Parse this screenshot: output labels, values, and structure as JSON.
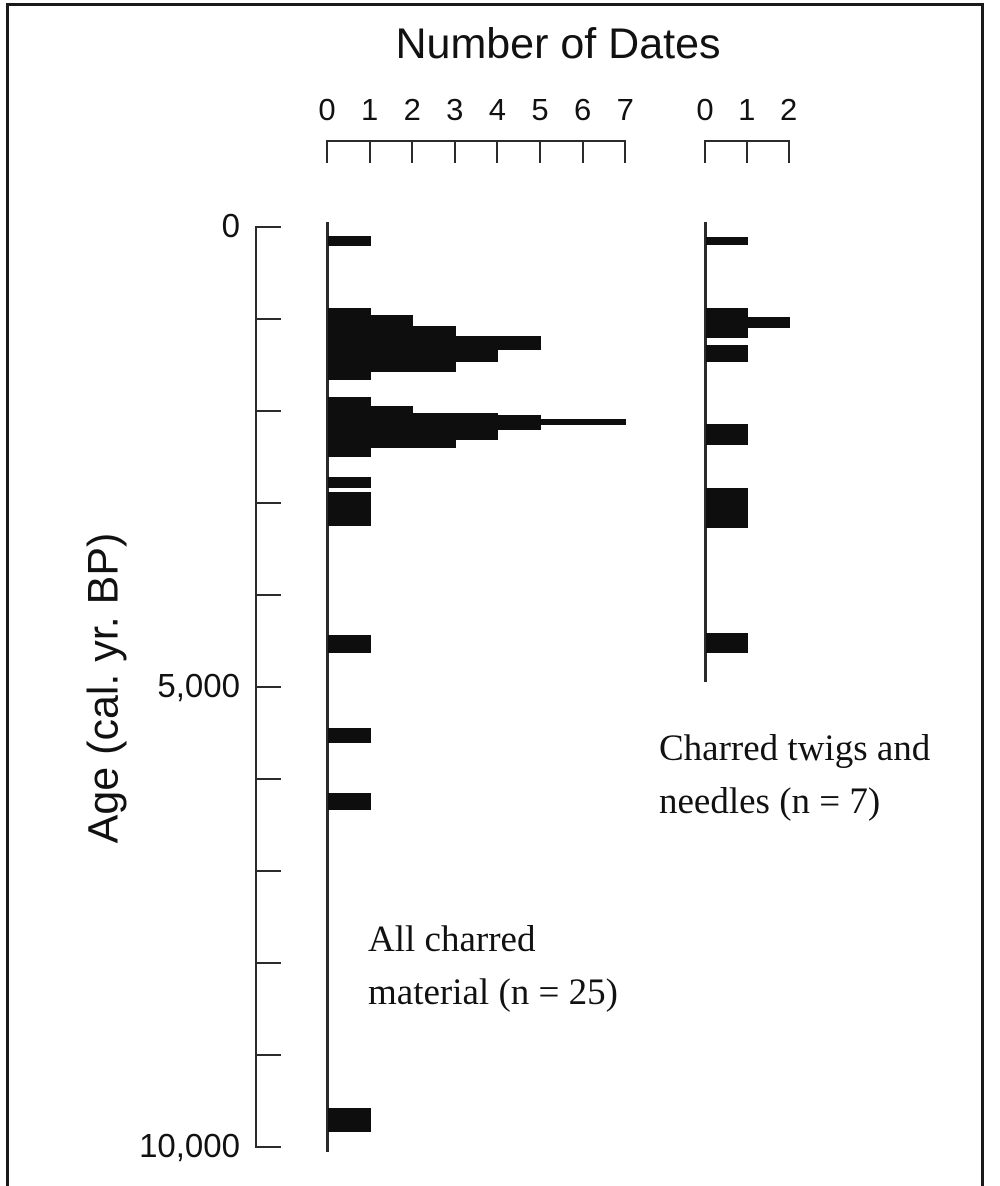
{
  "colors": {
    "ink": "#111111",
    "axis": "#2b2b2b",
    "bar": "#0e0e0e",
    "background": "#ffffff"
  },
  "chart_data": {
    "type": "bar",
    "orientation": "horizontal-histogram",
    "title": "Number of Dates",
    "grid": false,
    "legend": false,
    "y_axis": {
      "label": "Age (cal. yr. BP)",
      "min": 0,
      "max": 10000,
      "tick_interval": 1000,
      "tick_labels": [
        {
          "value": 0,
          "label": "0"
        },
        {
          "value": 5000,
          "label": "5,000"
        },
        {
          "value": 10000,
          "label": "10,000"
        }
      ]
    },
    "panels": [
      {
        "id": "all-charred-material",
        "annotation_line1": "All charred",
        "annotation_line2": "material (n = 25)",
        "n": 25,
        "x_ticks": [
          "0",
          "1",
          "2",
          "3",
          "4",
          "5",
          "6",
          "7"
        ],
        "xlim": [
          0,
          7
        ],
        "axis_bottom_age": 10050,
        "bars": [
          {
            "age_from": 100,
            "age_to": 205,
            "count": 1
          },
          {
            "age_from": 880,
            "age_to": 955,
            "count": 1
          },
          {
            "age_from": 955,
            "age_to": 1075,
            "count": 2
          },
          {
            "age_from": 1075,
            "age_to": 1185,
            "count": 3
          },
          {
            "age_from": 1185,
            "age_to": 1335,
            "count": 5
          },
          {
            "age_from": 1335,
            "age_to": 1465,
            "count": 4
          },
          {
            "age_from": 1465,
            "age_to": 1575,
            "count": 3
          },
          {
            "age_from": 1575,
            "age_to": 1665,
            "count": 1
          },
          {
            "age_from": 1850,
            "age_to": 1945,
            "count": 1
          },
          {
            "age_from": 1945,
            "age_to": 2020,
            "count": 2
          },
          {
            "age_from": 2020,
            "age_to": 2045,
            "count": 4
          },
          {
            "age_from": 2045,
            "age_to": 2085,
            "count": 5
          },
          {
            "age_from": 2085,
            "age_to": 2150,
            "count": 7
          },
          {
            "age_from": 2150,
            "age_to": 2205,
            "count": 5
          },
          {
            "age_from": 2205,
            "age_to": 2315,
            "count": 4
          },
          {
            "age_from": 2315,
            "age_to": 2400,
            "count": 3
          },
          {
            "age_from": 2400,
            "age_to": 2500,
            "count": 1
          },
          {
            "age_from": 2715,
            "age_to": 2835,
            "count": 1
          },
          {
            "age_from": 2880,
            "age_to": 3250,
            "count": 1
          },
          {
            "age_from": 4435,
            "age_to": 4630,
            "count": 1
          },
          {
            "age_from": 5445,
            "age_to": 5610,
            "count": 1
          },
          {
            "age_from": 6150,
            "age_to": 6340,
            "count": 1
          },
          {
            "age_from": 9575,
            "age_to": 9835,
            "count": 1
          }
        ]
      },
      {
        "id": "charred-twigs-needles",
        "annotation_line1": "Charred twigs and",
        "annotation_line2": "needles (n = 7)",
        "n": 7,
        "x_ticks": [
          "0",
          "1",
          "2"
        ],
        "xlim": [
          0,
          2
        ],
        "axis_bottom_age": 4950,
        "bars": [
          {
            "age_from": 110,
            "age_to": 195,
            "count": 1
          },
          {
            "age_from": 880,
            "age_to": 980,
            "count": 1
          },
          {
            "age_from": 980,
            "age_to": 1100,
            "count": 2
          },
          {
            "age_from": 1100,
            "age_to": 1205,
            "count": 1
          },
          {
            "age_from": 1285,
            "age_to": 1465,
            "count": 1
          },
          {
            "age_from": 2140,
            "age_to": 2370,
            "count": 1
          },
          {
            "age_from": 2835,
            "age_to": 3270,
            "count": 1
          },
          {
            "age_from": 4415,
            "age_to": 4630,
            "count": 1
          }
        ]
      }
    ]
  }
}
